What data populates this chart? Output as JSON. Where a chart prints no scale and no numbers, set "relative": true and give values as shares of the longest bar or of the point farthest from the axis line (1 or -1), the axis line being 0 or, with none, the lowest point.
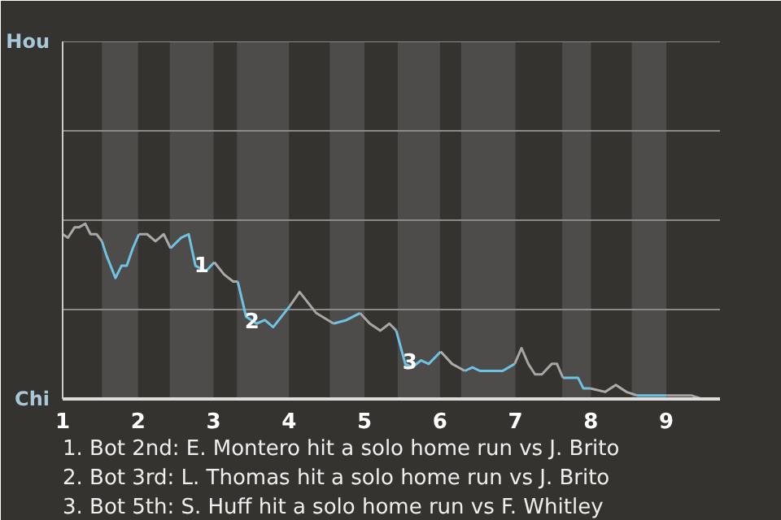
{
  "chart_data": {
    "type": "line",
    "relative": true,
    "xlim": [
      1,
      9.71
    ],
    "xticks": [
      1,
      2,
      3,
      4,
      5,
      6,
      7,
      8,
      9
    ],
    "marker": "none",
    "line_style": "solid",
    "ref_lines": [
      {
        "axis": "y",
        "value": 0.51,
        "label": null,
        "color": "#8a8a8a"
      },
      {
        "axis": "y",
        "value": 1.02,
        "label": null,
        "color": "#8a8a8a"
      },
      {
        "axis": "y",
        "value": 1.53,
        "label": null,
        "color": "#8a8a8a"
      },
      {
        "axis": "y",
        "value": 2.04,
        "label": null,
        "color": "#8a8a8a"
      }
    ],
    "series": [
      {
        "color": "#a8a8a8",
        "x": [
          1.0,
          1.07,
          1.16,
          1.22,
          1.3,
          1.37,
          1.45,
          1.52
        ],
        "values": [
          0.94,
          0.92,
          0.98,
          0.98,
          1,
          0.94,
          0.94,
          0.9
        ]
      },
      {
        "color": "#6ec3e3",
        "x": [
          1.52,
          1.58,
          1.7,
          1.78,
          1.85,
          1.93,
          2.01
        ],
        "values": [
          0.9,
          0.82,
          0.69,
          0.76,
          0.76,
          0.86,
          0.94
        ]
      },
      {
        "color": "#a9a9a9",
        "x": [
          2.01,
          2.12,
          2.23,
          2.34,
          2.43
        ],
        "values": [
          0.94,
          0.94,
          0.9,
          0.94,
          0.86
        ]
      },
      {
        "color": "#6fc3e3",
        "x": [
          2.43,
          2.57,
          2.67,
          2.76,
          2.9,
          3.01
        ],
        "values": [
          0.86,
          0.92,
          0.94,
          0.76,
          0.73,
          0.78
        ]
      },
      {
        "color": "#aaaaaa",
        "x": [
          3.01,
          3.14,
          3.26,
          3.32
        ],
        "values": [
          0.78,
          0.71,
          0.67,
          0.67
        ]
      },
      {
        "color": "#6ec4e3",
        "x": [
          3.32,
          3.43,
          3.57,
          3.68,
          3.79,
          3.9,
          4.01
        ],
        "values": [
          0.67,
          0.47,
          0.43,
          0.45,
          0.41,
          0.47,
          0.53
        ]
      },
      {
        "color": "#a7a7a7",
        "x": [
          4.01,
          4.14,
          4.36,
          4.59
        ],
        "values": [
          0.53,
          0.61,
          0.49,
          0.43
        ]
      },
      {
        "color": "#6ec3e4",
        "x": [
          4.59,
          4.76,
          4.94
        ],
        "values": [
          0.43,
          0.45,
          0.49
        ]
      },
      {
        "color": "#a6a6a6",
        "x": [
          4.94,
          5.07,
          5.21,
          5.33,
          5.42
        ],
        "values": [
          0.49,
          0.43,
          0.39,
          0.43,
          0.39
        ]
      },
      {
        "color": "#6dc3e3",
        "x": [
          5.42,
          5.54,
          5.63,
          5.75,
          5.85,
          6.01
        ],
        "values": [
          0.39,
          0.2,
          0.18,
          0.22,
          0.2,
          0.27
        ]
      },
      {
        "color": "#ababab",
        "x": [
          6.01,
          6.16,
          6.33
        ],
        "values": [
          0.27,
          0.2,
          0.16
        ]
      },
      {
        "color": "#6ec2e3",
        "x": [
          6.33,
          6.43,
          6.53,
          6.63,
          6.73,
          6.83,
          6.99
        ],
        "values": [
          0.16,
          0.18,
          0.16,
          0.16,
          0.16,
          0.16,
          0.2
        ]
      },
      {
        "color": "#a5a5a5",
        "x": [
          6.99,
          7.08,
          7.17,
          7.26,
          7.35,
          7.48,
          7.55,
          7.63
        ],
        "values": [
          0.2,
          0.29,
          0.2,
          0.14,
          0.14,
          0.2,
          0.2,
          0.12
        ]
      },
      {
        "color": "#6ec3e2",
        "x": [
          7.63,
          7.72,
          7.83,
          7.9,
          7.99
        ],
        "values": [
          0.12,
          0.12,
          0.12,
          0.06,
          0.06
        ]
      },
      {
        "color": "#acacac",
        "x": [
          7.99,
          8.19,
          8.33,
          8.47,
          8.61
        ],
        "values": [
          0.06,
          0.04,
          0.08,
          0.04,
          0.02
        ]
      },
      {
        "color": "#6fc4e4",
        "x": [
          8.61,
          8.76,
          8.9,
          9.0
        ],
        "values": [
          0.02,
          0.02,
          0.02,
          0.02
        ]
      },
      {
        "color": "#a4a4a4",
        "x": [
          9.0,
          9.17,
          9.33,
          9.47,
          9.57,
          9.7
        ],
        "values": [
          0.02,
          0.02,
          0.02,
          0,
          0,
          0
        ]
      }
    ],
    "bands": [
      {
        "axis": "x",
        "from": 1.52,
        "to": 2,
        "color": "#4d4c4a"
      },
      {
        "axis": "x",
        "from": 2.42,
        "to": 3,
        "color": "#4d4c4a"
      },
      {
        "axis": "x",
        "from": 3.31,
        "to": 4,
        "color": "#4d4c4a"
      },
      {
        "axis": "x",
        "from": 4.54,
        "to": 5,
        "color": "#4d4c4a"
      },
      {
        "axis": "x",
        "from": 5.44,
        "to": 6,
        "color": "#4d4c4a"
      },
      {
        "axis": "x",
        "from": 6.28,
        "to": 7,
        "color": "#4d4c4a"
      },
      {
        "axis": "x",
        "from": 7.62,
        "to": 8,
        "color": "#4d4c4a"
      },
      {
        "axis": "x",
        "from": 8.54,
        "to": 9,
        "color": "#4d4c4a"
      }
    ],
    "annotations": [
      "Hou",
      "Chi",
      {
        "text": "1",
        "x": 2.84,
        "y": 0.77
      },
      {
        "text": "2",
        "x": 3.51,
        "y": 0.45
      },
      {
        "text": "3",
        "x": 5.6,
        "y": 0.22
      },
      "1. Bot 2nd: E. Montero hit a solo home run vs J. Brito",
      "2. Bot 3rd: L. Thomas hit a solo home run vs J. Brito",
      "3. Bot 5th: S. Huff hit a solo home run vs F. Whitley"
    ]
  }
}
